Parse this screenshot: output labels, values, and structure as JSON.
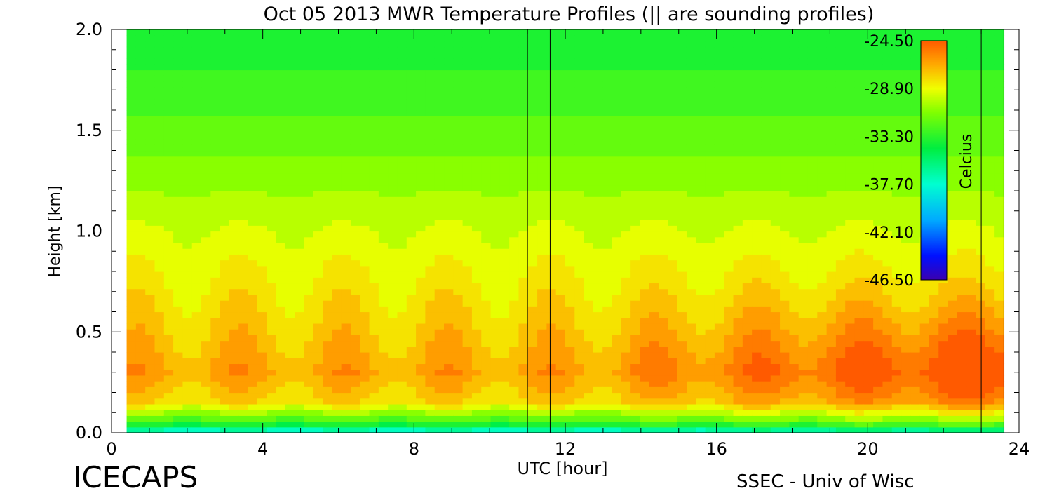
{
  "chart_data": {
    "type": "heatmap",
    "title": "Oct 05 2013 MWR Temperature Profiles (|| are sounding profiles)",
    "xlabel": "UTC [hour]",
    "ylabel": "Height [km]",
    "xlim": [
      0,
      24
    ],
    "ylim": [
      0,
      2.0
    ],
    "x_ticks": [
      "0",
      "4",
      "8",
      "12",
      "16",
      "20",
      "24"
    ],
    "y_ticks": [
      "0.0",
      "0.5",
      "1.0",
      "1.5",
      "2.0"
    ],
    "colorbar": {
      "label": "Celcius",
      "range": [
        -46.5,
        -24.5
      ],
      "ticks": [
        "-24.50",
        "-28.90",
        "-33.30",
        "-37.70",
        "-42.10",
        "-46.50"
      ]
    },
    "sounding_times_hours": [
      11.0,
      11.6,
      23.0,
      23.6
    ],
    "data_coverage_hours": [
      0.4,
      23.6
    ],
    "temperature_profile_summary": [
      {
        "height_km": 0.0,
        "temp_c": -38.5
      },
      {
        "height_km": 0.05,
        "temp_c": -33.0
      },
      {
        "height_km": 0.15,
        "temp_c": -28.0
      },
      {
        "height_km": 0.3,
        "temp_c": -26.5
      },
      {
        "height_km": 0.5,
        "temp_c": -27.5
      },
      {
        "height_km": 1.0,
        "temp_c": -29.5
      },
      {
        "height_km": 1.5,
        "temp_c": -32.0
      },
      {
        "height_km": 2.0,
        "temp_c": -34.0
      }
    ]
  },
  "footer": {
    "brand": "ICECAPS",
    "credit": "SSEC - Univ of Wisc"
  },
  "colors": {
    "background": "#ffffff",
    "axis": "#000000",
    "warm": "#ff6a00",
    "cold": "#3a00b0"
  }
}
